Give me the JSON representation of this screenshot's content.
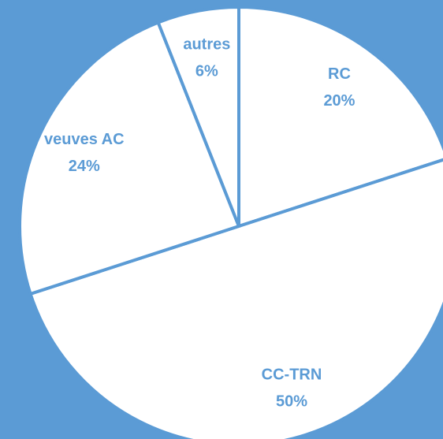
{
  "chart_data": {
    "type": "pie",
    "categories": [
      "RC",
      "CC-TRN",
      "veuves AC",
      "autres"
    ],
    "values": [
      20,
      50,
      24,
      6
    ],
    "value_labels": [
      "20%",
      "50%",
      "24%",
      "6%"
    ],
    "color": "#ffffff",
    "edge_color": "#5b9bd5",
    "background": "#5b9bd5"
  }
}
